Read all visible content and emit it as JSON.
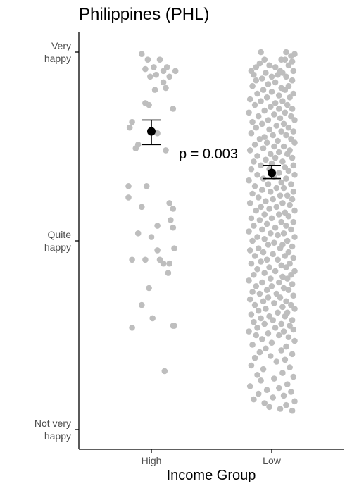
{
  "chart_data": {
    "type": "scatter",
    "title": "Philippines (PHL)",
    "xlabel": "Income Group",
    "ylabel": "",
    "categories": [
      "High",
      "Low"
    ],
    "y_ticks": [
      "Not very\nhappy",
      "Quite\nhappy",
      "Very\nhappy"
    ],
    "ylim": [
      1,
      3
    ],
    "grid": false,
    "annotation": "p = 0.003",
    "colors": {
      "points": "#bebebe",
      "mean": "#000000",
      "axis": "#000000"
    },
    "means": [
      {
        "category": "High",
        "mean": 2.58,
        "ci_low": 2.51,
        "ci_high": 2.64
      },
      {
        "category": "Low",
        "mean": 2.36,
        "ci_low": 2.33,
        "ci_high": 2.4
      }
    ],
    "series": [
      {
        "category": "High",
        "points": [
          [
            -0.08,
            2.99
          ],
          [
            -0.03,
            2.96
          ],
          [
            0.07,
            2.96
          ],
          [
            0.2,
            2.9
          ],
          [
            0.13,
            2.92
          ],
          [
            0.1,
            2.9
          ],
          [
            -0.05,
            2.91
          ],
          [
            0.02,
            2.92
          ],
          [
            0.04,
            2.88
          ],
          [
            -0.01,
            2.87
          ],
          [
            0.15,
            2.87
          ],
          [
            0.1,
            2.84
          ],
          [
            0.03,
            2.8
          ],
          [
            0.12,
            2.81
          ],
          [
            0.18,
            2.7
          ],
          [
            -0.05,
            2.73
          ],
          [
            -0.02,
            2.72
          ],
          [
            -0.16,
            2.63
          ],
          [
            -0.18,
            2.6
          ],
          [
            0.05,
            2.57
          ],
          [
            -0.11,
            2.51
          ],
          [
            0.12,
            2.48
          ],
          [
            -0.13,
            2.49
          ],
          [
            -0.19,
            2.29
          ],
          [
            -0.04,
            2.29
          ],
          [
            -0.19,
            2.23
          ],
          [
            0.15,
            2.2
          ],
          [
            0.18,
            2.17
          ],
          [
            -0.08,
            2.18
          ],
          [
            0.16,
            2.11
          ],
          [
            0.05,
            2.08
          ],
          [
            0.18,
            2.07
          ],
          [
            -0.11,
            2.04
          ],
          [
            0.0,
            2.02
          ],
          [
            0.19,
            1.96
          ],
          [
            0.05,
            1.95
          ],
          [
            -0.16,
            1.9
          ],
          [
            -0.05,
            1.9
          ],
          [
            0.07,
            1.9
          ],
          [
            0.1,
            1.88
          ],
          [
            0.15,
            1.88
          ],
          [
            0.14,
            1.83
          ],
          [
            -0.02,
            1.75
          ],
          [
            -0.08,
            1.66
          ],
          [
            0.01,
            1.59
          ],
          [
            -0.16,
            1.54
          ],
          [
            0.18,
            1.55
          ],
          [
            0.19,
            1.55
          ],
          [
            0.11,
            1.31
          ]
        ]
      },
      {
        "category": "Low",
        "points": [
          [
            -0.09,
            3.0
          ],
          [
            0.12,
            3.0
          ],
          [
            0.19,
            2.99
          ],
          [
            0.16,
            2.98
          ],
          [
            -0.06,
            2.96
          ],
          [
            0.08,
            2.96
          ],
          [
            0.11,
            2.96
          ],
          [
            0.17,
            2.95
          ],
          [
            -0.1,
            2.94
          ],
          [
            -0.02,
            2.93
          ],
          [
            0.14,
            2.93
          ],
          [
            0.03,
            2.92
          ],
          [
            -0.13,
            2.92
          ],
          [
            0.18,
            2.9
          ],
          [
            -0.17,
            2.9
          ],
          [
            0.07,
            2.9
          ],
          [
            0.09,
            2.89
          ],
          [
            -0.05,
            2.89
          ],
          [
            -0.15,
            2.88
          ],
          [
            0.05,
            2.88
          ],
          [
            0.0,
            2.87
          ],
          [
            0.12,
            2.87
          ],
          [
            -0.08,
            2.86
          ],
          [
            -0.13,
            2.85
          ],
          [
            0.17,
            2.85
          ],
          [
            0.03,
            2.84
          ],
          [
            -0.03,
            2.83
          ],
          [
            0.14,
            2.82
          ],
          [
            -0.16,
            2.82
          ],
          [
            0.08,
            2.81
          ],
          [
            -0.07,
            2.8
          ],
          [
            0.11,
            2.8
          ],
          [
            0.0,
            2.79
          ],
          [
            0.18,
            2.78
          ],
          [
            -0.12,
            2.78
          ],
          [
            0.06,
            2.77
          ],
          [
            -0.04,
            2.76
          ],
          [
            0.15,
            2.76
          ],
          [
            -0.18,
            2.75
          ],
          [
            0.09,
            2.74
          ],
          [
            -0.09,
            2.74
          ],
          [
            0.03,
            2.73
          ],
          [
            0.13,
            2.72
          ],
          [
            -0.14,
            2.72
          ],
          [
            -0.01,
            2.71
          ],
          [
            0.17,
            2.7
          ],
          [
            0.06,
            2.7
          ],
          [
            -0.06,
            2.69
          ],
          [
            -0.19,
            2.68
          ],
          [
            0.11,
            2.68
          ],
          [
            0.02,
            2.67
          ],
          [
            -0.11,
            2.66
          ],
          [
            0.16,
            2.66
          ],
          [
            0.07,
            2.65
          ],
          [
            -0.03,
            2.64
          ],
          [
            0.19,
            2.64
          ],
          [
            -0.16,
            2.63
          ],
          [
            0.1,
            2.62
          ],
          [
            -0.08,
            2.62
          ],
          [
            0.04,
            2.61
          ],
          [
            0.14,
            2.6
          ],
          [
            -0.13,
            2.6
          ],
          [
            -0.02,
            2.59
          ],
          [
            0.18,
            2.58
          ],
          [
            0.08,
            2.58
          ],
          [
            -0.17,
            2.57
          ],
          [
            0.01,
            2.56
          ],
          [
            0.12,
            2.56
          ],
          [
            -0.06,
            2.55
          ],
          [
            0.16,
            2.54
          ],
          [
            -0.1,
            2.54
          ],
          [
            0.05,
            2.53
          ],
          [
            -0.04,
            2.52
          ],
          [
            0.19,
            2.52
          ],
          [
            -0.14,
            2.51
          ],
          [
            0.1,
            2.5
          ],
          [
            0.02,
            2.5
          ],
          [
            -0.07,
            2.49
          ],
          [
            0.15,
            2.48
          ],
          [
            -0.18,
            2.48
          ],
          [
            0.06,
            2.47
          ],
          [
            -0.01,
            2.46
          ],
          [
            0.13,
            2.46
          ],
          [
            -0.12,
            2.45
          ],
          [
            0.17,
            2.44
          ],
          [
            0.03,
            2.44
          ],
          [
            -0.05,
            2.43
          ],
          [
            0.09,
            2.42
          ],
          [
            -0.15,
            2.42
          ],
          [
            0.0,
            2.41
          ],
          [
            0.18,
            2.4
          ],
          [
            -0.09,
            2.4
          ],
          [
            0.11,
            2.39
          ],
          [
            -0.02,
            2.38
          ],
          [
            -0.17,
            2.38
          ],
          [
            0.14,
            2.37
          ],
          [
            0.06,
            2.36
          ],
          [
            -0.12,
            2.35
          ],
          [
            0.19,
            2.35
          ],
          [
            0.02,
            2.34
          ],
          [
            -0.07,
            2.33
          ],
          [
            0.12,
            2.33
          ],
          [
            -0.19,
            2.32
          ],
          [
            0.08,
            2.31
          ],
          [
            -0.03,
            2.3
          ],
          [
            0.16,
            2.3
          ],
          [
            -0.14,
            2.29
          ],
          [
            0.04,
            2.28
          ],
          [
            0.1,
            2.28
          ],
          [
            -0.08,
            2.27
          ],
          [
            0.18,
            2.26
          ],
          [
            -0.01,
            2.26
          ],
          [
            -0.16,
            2.25
          ],
          [
            0.07,
            2.24
          ],
          [
            0.13,
            2.24
          ],
          [
            -0.11,
            2.23
          ],
          [
            0.01,
            2.22
          ],
          [
            0.17,
            2.22
          ],
          [
            -0.05,
            2.21
          ],
          [
            -0.18,
            2.2
          ],
          [
            0.09,
            2.2
          ],
          [
            0.15,
            2.19
          ],
          [
            -0.09,
            2.18
          ],
          [
            0.04,
            2.18
          ],
          [
            -0.02,
            2.17
          ],
          [
            0.19,
            2.16
          ],
          [
            -0.13,
            2.16
          ],
          [
            0.11,
            2.15
          ],
          [
            -0.06,
            2.14
          ],
          [
            0.06,
            2.14
          ],
          [
            0.14,
            2.13
          ],
          [
            -0.17,
            2.12
          ],
          [
            0.0,
            2.12
          ],
          [
            -0.1,
            2.11
          ],
          [
            0.18,
            2.1
          ],
          [
            0.08,
            2.1
          ],
          [
            -0.04,
            2.09
          ],
          [
            0.12,
            2.08
          ],
          [
            -0.15,
            2.08
          ],
          [
            0.03,
            2.07
          ],
          [
            -0.08,
            2.06
          ],
          [
            0.16,
            2.06
          ],
          [
            -0.19,
            2.05
          ],
          [
            0.1,
            2.04
          ],
          [
            -0.01,
            2.04
          ],
          [
            0.05,
            2.03
          ],
          [
            -0.12,
            2.02
          ],
          [
            0.19,
            2.02
          ],
          [
            -0.06,
            2.01
          ],
          [
            0.13,
            2.0
          ],
          [
            -0.16,
            2.0
          ],
          [
            0.02,
            1.99
          ],
          [
            0.09,
            1.98
          ],
          [
            -0.03,
            1.98
          ],
          [
            0.17,
            1.97
          ],
          [
            -0.11,
            1.96
          ],
          [
            0.07,
            1.96
          ],
          [
            -0.18,
            1.95
          ],
          [
            0.14,
            1.94
          ],
          [
            -0.07,
            1.94
          ],
          [
            0.01,
            1.93
          ],
          [
            0.11,
            1.92
          ],
          [
            -0.14,
            1.92
          ],
          [
            0.18,
            1.91
          ],
          [
            -0.04,
            1.9
          ],
          [
            0.05,
            1.9
          ],
          [
            -0.09,
            1.89
          ],
          [
            0.15,
            1.88
          ],
          [
            -0.17,
            1.88
          ],
          [
            0.08,
            1.87
          ],
          [
            -0.02,
            1.86
          ],
          [
            0.12,
            1.86
          ],
          [
            -0.12,
            1.85
          ],
          [
            0.19,
            1.84
          ],
          [
            0.03,
            1.84
          ],
          [
            -0.06,
            1.83
          ],
          [
            0.16,
            1.82
          ],
          [
            -0.15,
            1.82
          ],
          [
            0.09,
            1.81
          ],
          [
            -0.01,
            1.8
          ],
          [
            0.13,
            1.8
          ],
          [
            -0.19,
            1.79
          ],
          [
            0.06,
            1.78
          ],
          [
            -0.08,
            1.78
          ],
          [
            0.17,
            1.77
          ],
          [
            0.0,
            1.76
          ],
          [
            -0.13,
            1.76
          ],
          [
            0.1,
            1.75
          ],
          [
            -0.04,
            1.74
          ],
          [
            0.14,
            1.74
          ],
          [
            -0.16,
            1.73
          ],
          [
            0.04,
            1.72
          ],
          [
            -0.1,
            1.72
          ],
          [
            0.18,
            1.71
          ],
          [
            0.07,
            1.7
          ],
          [
            -0.03,
            1.7
          ],
          [
            -0.18,
            1.69
          ],
          [
            0.12,
            1.68
          ],
          [
            -0.07,
            1.68
          ],
          [
            0.02,
            1.67
          ],
          [
            0.16,
            1.66
          ],
          [
            -0.14,
            1.66
          ],
          [
            0.09,
            1.65
          ],
          [
            -0.05,
            1.64
          ],
          [
            0.19,
            1.64
          ],
          [
            -0.11,
            1.63
          ],
          [
            0.05,
            1.62
          ],
          [
            0.13,
            1.62
          ],
          [
            -0.17,
            1.61
          ],
          [
            -0.02,
            1.6
          ],
          [
            0.11,
            1.6
          ],
          [
            -0.09,
            1.59
          ],
          [
            0.17,
            1.58
          ],
          [
            0.01,
            1.58
          ],
          [
            -0.15,
            1.57
          ],
          [
            0.08,
            1.56
          ],
          [
            -0.06,
            1.56
          ],
          [
            0.15,
            1.55
          ],
          [
            -0.12,
            1.54
          ],
          [
            0.03,
            1.54
          ],
          [
            0.18,
            1.53
          ],
          [
            -0.19,
            1.52
          ],
          [
            0.1,
            1.52
          ],
          [
            -0.03,
            1.51
          ],
          [
            0.06,
            1.5
          ],
          [
            -0.13,
            1.5
          ],
          [
            0.14,
            1.49
          ],
          [
            -0.08,
            1.48
          ],
          [
            0.19,
            1.47
          ],
          [
            0.0,
            1.46
          ],
          [
            -0.16,
            1.45
          ],
          [
            0.12,
            1.44
          ],
          [
            -0.05,
            1.43
          ],
          [
            0.08,
            1.42
          ],
          [
            -0.1,
            1.41
          ],
          [
            0.17,
            1.4
          ],
          [
            -0.01,
            1.39
          ],
          [
            -0.14,
            1.38
          ],
          [
            0.11,
            1.37
          ],
          [
            0.04,
            1.36
          ],
          [
            -0.17,
            1.34
          ],
          [
            0.15,
            1.33
          ],
          [
            -0.07,
            1.32
          ],
          [
            0.09,
            1.3
          ],
          [
            -0.12,
            1.29
          ],
          [
            0.18,
            1.28
          ],
          [
            0.02,
            1.27
          ],
          [
            -0.09,
            1.26
          ],
          [
            0.13,
            1.24
          ],
          [
            -0.18,
            1.23
          ],
          [
            0.06,
            1.22
          ],
          [
            -0.04,
            1.21
          ],
          [
            0.16,
            1.2
          ],
          [
            -0.11,
            1.19
          ],
          [
            0.1,
            1.18
          ],
          [
            0.01,
            1.17
          ],
          [
            -0.15,
            1.16
          ],
          [
            0.19,
            1.15
          ],
          [
            -0.06,
            1.14
          ],
          [
            0.12,
            1.13
          ],
          [
            -0.02,
            1.12
          ],
          [
            0.07,
            1.11
          ],
          [
            0.17,
            1.1
          ]
        ]
      }
    ]
  }
}
